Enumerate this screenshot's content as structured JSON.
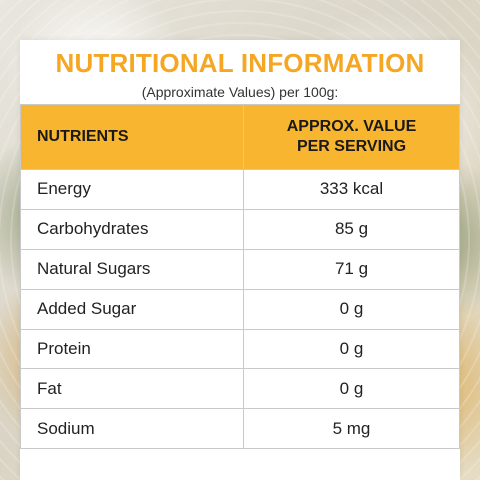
{
  "title": "NUTRITIONAL INFORMATION",
  "subtitle": "(Approximate Values) per 100g:",
  "header": {
    "nutrients": "NUTRIENTS",
    "value_line1": "APPROX. VALUE",
    "value_line2": "PER SERVING"
  },
  "rows": [
    {
      "name": "Energy",
      "value": "333 kcal"
    },
    {
      "name": "Carbohydrates",
      "value": "85 g"
    },
    {
      "name": "Natural Sugars",
      "value": "71 g"
    },
    {
      "name": "Added Sugar",
      "value": "0 g"
    },
    {
      "name": "Protein",
      "value": "0 g"
    },
    {
      "name": "Fat",
      "value": "0 g"
    },
    {
      "name": "Sodium",
      "value": "5 mg"
    }
  ],
  "colors": {
    "accent": "#f5a623",
    "header_bg": "#f8b530"
  }
}
